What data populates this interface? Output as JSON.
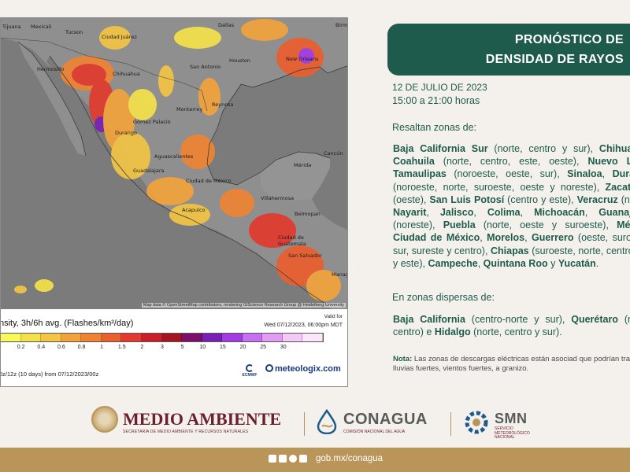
{
  "map": {
    "cities": [
      "Tijuana",
      "Mexicali",
      "Tucson",
      "Ciudad Juárez",
      "Dallas",
      "Birmi",
      "Hermosillo",
      "Chihuahua",
      "San Antonio",
      "Houston",
      "New Orleans",
      "Monterrey",
      "Reynosa",
      "Gómez Palacio",
      "Durango",
      "Aguascalientes",
      "Guadalajara",
      "Ciudad de México",
      "Acapulco",
      "Mérida",
      "Cancún",
      "Villahermosa",
      "Belmopan",
      "Ciudad de Guatemala",
      "San Salvador",
      "Managua"
    ],
    "attribution": "Map data © OpenStreetMap contributors, rendering GIScience Research Group @ Heidelberg University"
  },
  "legend": {
    "title": "nsity, 3h/6h avg. (Flashes/km²/day)",
    "valid_label": "Valid for",
    "valid_date": "Wed 07/12/2023, 06:00pm MDT",
    "scale_colors": [
      "#f8f85a",
      "#f4e14a",
      "#f3c545",
      "#f2a33b",
      "#ee8433",
      "#ea5f2e",
      "#e23a2e",
      "#c81f2a",
      "#a41522",
      "#7c0f6a",
      "#7a1fb6",
      "#a23ce2",
      "#c66ff0",
      "#e29cf4",
      "#f4c8f8",
      "#fbe6fb"
    ],
    "ticks": [
      "0.2",
      "0.4",
      "0.6",
      "0.8",
      "1",
      "1.5",
      "2",
      "3",
      "5",
      "10",
      "15",
      "20",
      "25",
      "30"
    ],
    "model_run": "0z/12z (10 days) from 07/12/2023/00z",
    "ecmwf": "ECMWF",
    "brand": "meteologix.com"
  },
  "header": {
    "title_line1": "PRONÓSTICO DE",
    "title_line2": "DENSIDAD DE RAYOS"
  },
  "forecast": {
    "date": "12 DE JULIO DE 2023",
    "hours": "15:00 a 21:00 horas",
    "section1": "Resaltan zonas de:",
    "section2": "En zonas dispersas de:",
    "note_label": "Nota:",
    "note_text": " Las zonas de descargas eléctricas están asociad que podrían traer lluvias fuertes, vientos fuertes, a granizo."
  },
  "footer": {
    "ma_title": "MEDIO AMBIENTE",
    "ma_sub": "SECRETARÍA DE MEDIO AMBIENTE Y RECURSOS NATURALES",
    "cna_title": "CONAGUA",
    "cna_sub": "COMISIÓN NACIONAL DEL AGUA",
    "smn_title": "SMN",
    "smn_sub": "SERVICIO\nMETEOROLÓGICO\nNACIONAL",
    "url": "gob.mx/conagua"
  }
}
